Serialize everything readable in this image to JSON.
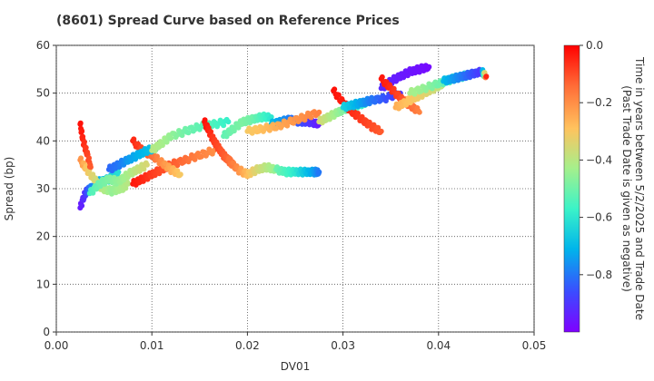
{
  "chart_data": {
    "type": "scatter",
    "title": "(8601)   Spread Curve based on Reference Prices",
    "xlabel": "DV01",
    "ylabel": "Spread (bp)",
    "xlim": [
      0.0,
      0.05
    ],
    "ylim": [
      0,
      60
    ],
    "x_ticks": [
      0.0,
      0.01,
      0.02,
      0.03,
      0.04,
      0.05
    ],
    "x_tick_labels": [
      "0.00",
      "0.01",
      "0.02",
      "0.03",
      "0.04",
      "0.05"
    ],
    "y_ticks": [
      0,
      10,
      20,
      30,
      40,
      50,
      60
    ],
    "y_tick_labels": [
      "0",
      "10",
      "20",
      "30",
      "40",
      "50",
      "60"
    ],
    "grid": true,
    "colorbar": {
      "label_line1": "Time in years between 5/2/2025 and Trade Date",
      "label_line2": "(Past Trade Date is given as negative)",
      "colormap": "rainbow",
      "range": [
        -1.0,
        0.0
      ],
      "ticks": [
        0.0,
        -0.2,
        -0.4,
        -0.6,
        -0.8
      ],
      "tick_labels": [
        "0.0",
        "−0.2",
        "−0.4",
        "−0.6",
        "−0.8"
      ]
    },
    "point_colors": [
      "#7f00ff",
      "#3b4cff",
      "#00b5eb",
      "#3bf3c8",
      "#a4f08c",
      "#ffc35e",
      "#ff6b36",
      "#ff0000"
    ],
    "segments": [
      {
        "x": [
          0.0025,
          0.003,
          0.0035,
          0.0045,
          0.0055,
          0.0065
        ],
        "y": [
          26,
          29,
          30,
          31.5,
          32,
          33.5
        ],
        "t": [
          -0.95,
          -0.9,
          -0.8,
          -0.72,
          -0.66,
          -0.62
        ]
      },
      {
        "x": [
          0.0025,
          0.0032,
          0.004,
          0.0048,
          0.0058,
          0.0068,
          0.0075
        ],
        "y": [
          36,
          34,
          32,
          30,
          29.5,
          30,
          31
        ],
        "t": [
          -0.2,
          -0.3,
          -0.35,
          -0.4,
          -0.45,
          -0.42,
          -0.4
        ]
      },
      {
        "x": [
          0.0025,
          0.0028,
          0.0032,
          0.0036
        ],
        "y": [
          43.5,
          40,
          37.5,
          34.5
        ],
        "t": [
          -0.02,
          -0.05,
          -0.08,
          -0.12
        ]
      },
      {
        "x": [
          0.0035,
          0.0045,
          0.0055,
          0.0065,
          0.0075,
          0.0085,
          0.0095
        ],
        "y": [
          29,
          31,
          32,
          31.5,
          33,
          34,
          35
        ],
        "t": [
          -0.55,
          -0.5,
          -0.48,
          -0.45,
          -0.42,
          -0.38,
          -0.35
        ]
      },
      {
        "x": [
          0.008,
          0.009,
          0.01,
          0.011,
          0.012,
          0.0135,
          0.015,
          0.0165
        ],
        "y": [
          31,
          32,
          33,
          34,
          35,
          36,
          37,
          38
        ],
        "t": [
          -0.03,
          -0.05,
          -0.08,
          -0.1,
          -0.12,
          -0.15,
          -0.18,
          -0.2
        ]
      },
      {
        "x": [
          0.008,
          0.009,
          0.01,
          0.011,
          0.012,
          0.013
        ],
        "y": [
          40,
          38,
          37,
          35.5,
          34,
          33
        ],
        "t": [
          -0.05,
          -0.1,
          -0.15,
          -0.2,
          -0.25,
          -0.3
        ]
      },
      {
        "x": [
          0.0055,
          0.0065,
          0.0075,
          0.0085,
          0.0095,
          0.0105
        ],
        "y": [
          34,
          35,
          36,
          37,
          38,
          38.5
        ],
        "t": [
          -0.82,
          -0.8,
          -0.75,
          -0.72,
          -0.7,
          -0.68
        ]
      },
      {
        "x": [
          0.01,
          0.011,
          0.012,
          0.0135,
          0.015,
          0.0165,
          0.018
        ],
        "y": [
          38,
          39.5,
          41,
          42,
          43,
          43.5,
          44
        ],
        "t": [
          -0.4,
          -0.42,
          -0.45,
          -0.5,
          -0.52,
          -0.55,
          -0.58
        ]
      },
      {
        "x": [
          0.0155,
          0.016,
          0.0165,
          0.017,
          0.0175,
          0.018,
          0.0185
        ],
        "y": [
          44,
          42,
          40,
          38.5,
          37,
          36,
          35
        ],
        "t": [
          -0.02,
          -0.05,
          -0.08,
          -0.1,
          -0.12,
          -0.14,
          -0.16
        ]
      },
      {
        "x": [
          0.018,
          0.019,
          0.02,
          0.021,
          0.022,
          0.023
        ],
        "y": [
          36,
          34,
          33,
          34,
          34.5,
          34
        ],
        "t": [
          -0.15,
          -0.2,
          -0.28,
          -0.35,
          -0.4,
          -0.45
        ]
      },
      {
        "x": [
          0.023,
          0.024,
          0.025,
          0.026,
          0.027,
          0.0275
        ],
        "y": [
          34,
          33.5,
          33.5,
          33.5,
          33.5,
          33.5
        ],
        "t": [
          -0.5,
          -0.55,
          -0.6,
          -0.68,
          -0.75,
          -0.8
        ]
      },
      {
        "x": [
          0.0175,
          0.0185,
          0.0195,
          0.0205,
          0.0215,
          0.0225
        ],
        "y": [
          41,
          42.5,
          44,
          44.5,
          45,
          45
        ],
        "t": [
          -0.52,
          -0.5,
          -0.48,
          -0.5,
          -0.55,
          -0.6
        ]
      },
      {
        "x": [
          0.0225,
          0.0235,
          0.0245,
          0.0255,
          0.0265,
          0.0275
        ],
        "y": [
          43.5,
          44,
          44.5,
          44,
          44,
          43.5
        ],
        "t": [
          -0.7,
          -0.75,
          -0.8,
          -0.85,
          -0.9,
          -0.95
        ]
      },
      {
        "x": [
          0.02,
          0.0215,
          0.023,
          0.0245,
          0.026,
          0.0275
        ],
        "y": [
          42,
          42.5,
          43,
          44,
          45,
          46
        ],
        "t": [
          -0.3,
          -0.28,
          -0.25,
          -0.22,
          -0.2,
          -0.18
        ]
      },
      {
        "x": [
          0.0275,
          0.0285,
          0.0295,
          0.0305,
          0.0315,
          0.0325
        ],
        "y": [
          44,
          45,
          46,
          47,
          47.5,
          48
        ],
        "t": [
          -0.35,
          -0.4,
          -0.45,
          -0.5,
          -0.55,
          -0.6
        ]
      },
      {
        "x": [
          0.029,
          0.03,
          0.031,
          0.032,
          0.033,
          0.034
        ],
        "y": [
          50.5,
          48,
          46,
          44.5,
          43,
          42
        ],
        "t": [
          -0.02,
          -0.04,
          -0.06,
          -0.08,
          -0.1,
          -0.12
        ]
      },
      {
        "x": [
          0.03,
          0.031,
          0.032,
          0.033,
          0.0345,
          0.036
        ],
        "y": [
          47,
          47.5,
          48,
          48.5,
          49,
          50
        ],
        "t": [
          -0.65,
          -0.7,
          -0.75,
          -0.8,
          -0.85,
          -0.9
        ]
      },
      {
        "x": [
          0.034,
          0.035,
          0.036,
          0.037,
          0.038,
          0.039
        ],
        "y": [
          51,
          52.5,
          53.5,
          54.5,
          55,
          55.5
        ],
        "t": [
          -0.92,
          -0.94,
          -0.95,
          -0.96,
          -0.97,
          -0.98
        ]
      },
      {
        "x": [
          0.034,
          0.035,
          0.036,
          0.037,
          0.038
        ],
        "y": [
          53,
          51,
          49,
          47.5,
          46
        ],
        "t": [
          -0.03,
          -0.06,
          -0.1,
          -0.14,
          -0.18
        ]
      },
      {
        "x": [
          0.0355,
          0.0365,
          0.0375,
          0.0385,
          0.0395,
          0.0405
        ],
        "y": [
          47,
          48,
          49,
          50,
          51,
          52
        ],
        "t": [
          -0.25,
          -0.28,
          -0.3,
          -0.33,
          -0.36,
          -0.4
        ]
      },
      {
        "x": [
          0.037,
          0.0385,
          0.04,
          0.0415,
          0.0425,
          0.0435
        ],
        "y": [
          50,
          51,
          52,
          53,
          53.5,
          54
        ],
        "t": [
          -0.42,
          -0.45,
          -0.5,
          -0.55,
          -0.6,
          -0.65
        ]
      },
      {
        "x": [
          0.0405,
          0.0415,
          0.0425,
          0.0435,
          0.0445,
          0.045
        ],
        "y": [
          52.5,
          53,
          53.5,
          54,
          54.5,
          53.5
        ],
        "t": [
          -0.7,
          -0.75,
          -0.8,
          -0.85,
          -0.9,
          -0.05
        ]
      }
    ]
  }
}
